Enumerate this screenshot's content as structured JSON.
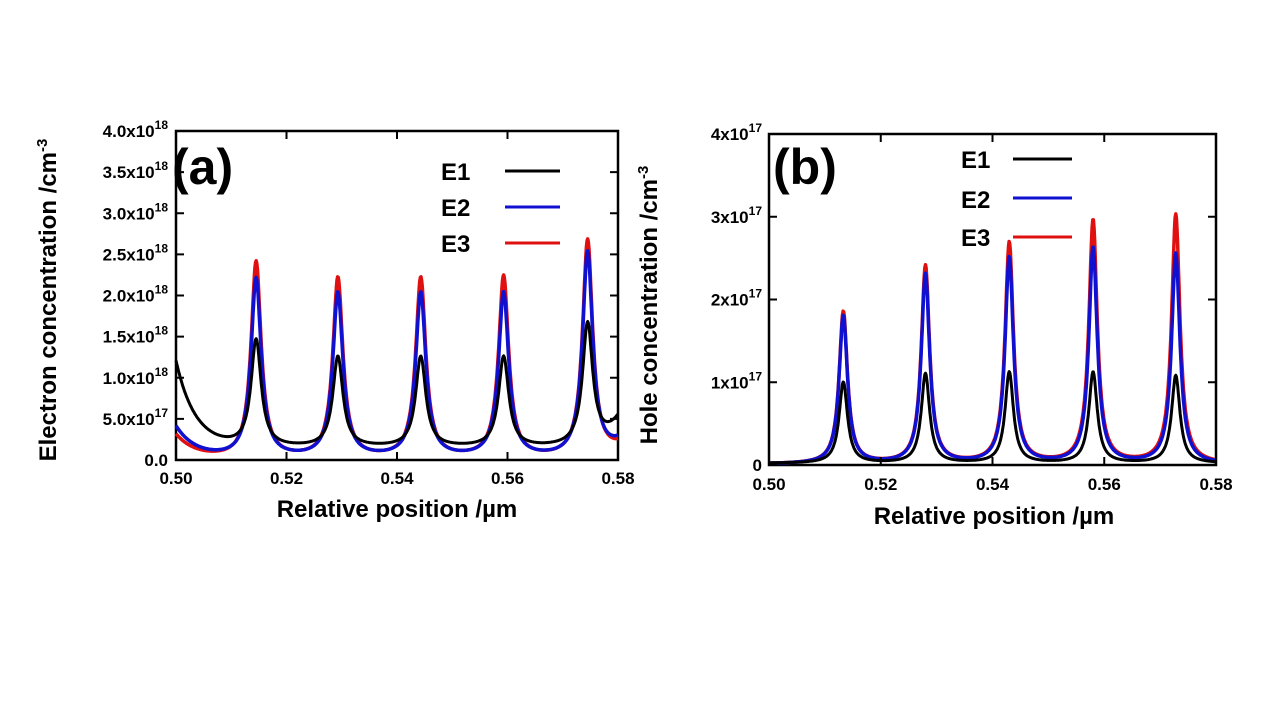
{
  "chart_data": [
    {
      "type": "line",
      "panel_label": "(a)",
      "xlabel": "Relative position /µm",
      "ylabel": "Electron concentration /cm",
      "ylabel_sup": "-3",
      "xlim": [
        0.5,
        0.58
      ],
      "ylim": [
        0,
        4e+18
      ],
      "x_ticks": [
        "0.50",
        "0.52",
        "0.54",
        "0.56",
        "0.58"
      ],
      "y_ticks": [
        {
          "base": "0.0",
          "exp": ""
        },
        {
          "base": "5.0x10",
          "exp": "17"
        },
        {
          "base": "1.0x10",
          "exp": "18"
        },
        {
          "base": "1.5x10",
          "exp": "18"
        },
        {
          "base": "2.0x10",
          "exp": "18"
        },
        {
          "base": "2.5x10",
          "exp": "18"
        },
        {
          "base": "3.0x10",
          "exp": "18"
        },
        {
          "base": "3.5x10",
          "exp": "18"
        },
        {
          "base": "4.0x10",
          "exp": "18"
        }
      ],
      "peak_positions": [
        0.5145,
        0.5293,
        0.5443,
        0.5593,
        0.5745
      ],
      "peak_width": 0.0011,
      "legend_position": "top-right",
      "series": [
        {
          "name": "E1",
          "color": "#000000",
          "peaks": [
            1.45e+18,
            1.25e+18,
            1.25e+18,
            1.25e+18,
            1.62e+18
          ],
          "left_edge": 1.2e+18,
          "right_edge": 5e+17,
          "baseline": 1.5e+17
        },
        {
          "name": "E2",
          "color": "#1010d0",
          "peaks": [
            2.2e+18,
            2.02e+18,
            2.02e+18,
            2.02e+18,
            2.5e+18
          ],
          "left_edge": 4e+17,
          "right_edge": 2e+17,
          "baseline": 2e+16
        },
        {
          "name": "E3",
          "color": "#e01010",
          "peaks": [
            2.4e+18,
            2.2e+18,
            2.2e+18,
            2.22e+18,
            2.65e+18
          ],
          "left_edge": 3e+17,
          "right_edge": 1.5e+17,
          "baseline": 1e+16
        }
      ]
    },
    {
      "type": "line",
      "panel_label": "(b)",
      "xlabel": "Relative position /µm",
      "ylabel": "Hole concentration /cm",
      "ylabel_sup": "-3",
      "xlim": [
        0.5,
        0.58
      ],
      "ylim": [
        0,
        4e+17
      ],
      "x_ticks": [
        "0.50",
        "0.52",
        "0.54",
        "0.56",
        "0.58"
      ],
      "y_ticks": [
        {
          "base": "0",
          "exp": ""
        },
        {
          "base": "1x10",
          "exp": "17"
        },
        {
          "base": "2x10",
          "exp": "17"
        },
        {
          "base": "3x10",
          "exp": "17"
        },
        {
          "base": "4x10",
          "exp": "17"
        }
      ],
      "peak_positions": [
        0.5133,
        0.528,
        0.543,
        0.558,
        0.5728
      ],
      "peak_width": 0.0009,
      "legend_position": "top-left",
      "series": [
        {
          "name": "E1",
          "color": "#000000",
          "peaks": [
            1e+17,
            1.1e+17,
            1.12e+17,
            1.12e+17,
            1.08e+17
          ],
          "baseline": 2000000000000000.0
        },
        {
          "name": "E2",
          "color": "#1010d0",
          "peaks": [
            1.8e+17,
            2.3e+17,
            2.5e+17,
            2.62e+17,
            2.55e+17
          ],
          "baseline": 1000000000000000.0
        },
        {
          "name": "E3",
          "color": "#e01010",
          "peaks": [
            1.85e+17,
            2.4e+17,
            2.68e+17,
            2.95e+17,
            3.02e+17
          ],
          "baseline": 1000000000000000.0
        }
      ]
    }
  ]
}
